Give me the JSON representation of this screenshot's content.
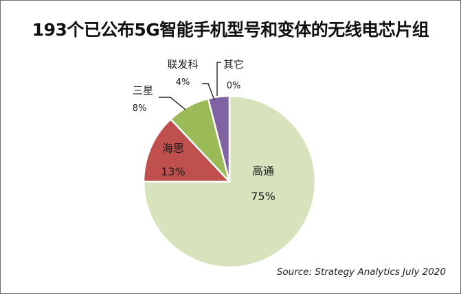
{
  "chart_data": {
    "type": "pie",
    "title": "193个已公布5G智能手机型号和变体的无线电芯片组",
    "source": "Source:  Strategy Analytics July 2020",
    "slices": [
      {
        "label": "高通",
        "value": 75,
        "value_label": "75%",
        "color": "#d6e3bc"
      },
      {
        "label": "海思",
        "value": 13,
        "value_label": "13%",
        "color": "#c0504d"
      },
      {
        "label": "三星",
        "value": 8,
        "value_label": "8%",
        "color": "#9bbb59"
      },
      {
        "label": "联发科",
        "value": 4,
        "value_label": "4%",
        "color": "#8064a2"
      },
      {
        "label": "其它",
        "value": 0,
        "value_label": "0%",
        "color": "#4f81bd"
      }
    ],
    "legend": "none",
    "labels": "on chart"
  }
}
